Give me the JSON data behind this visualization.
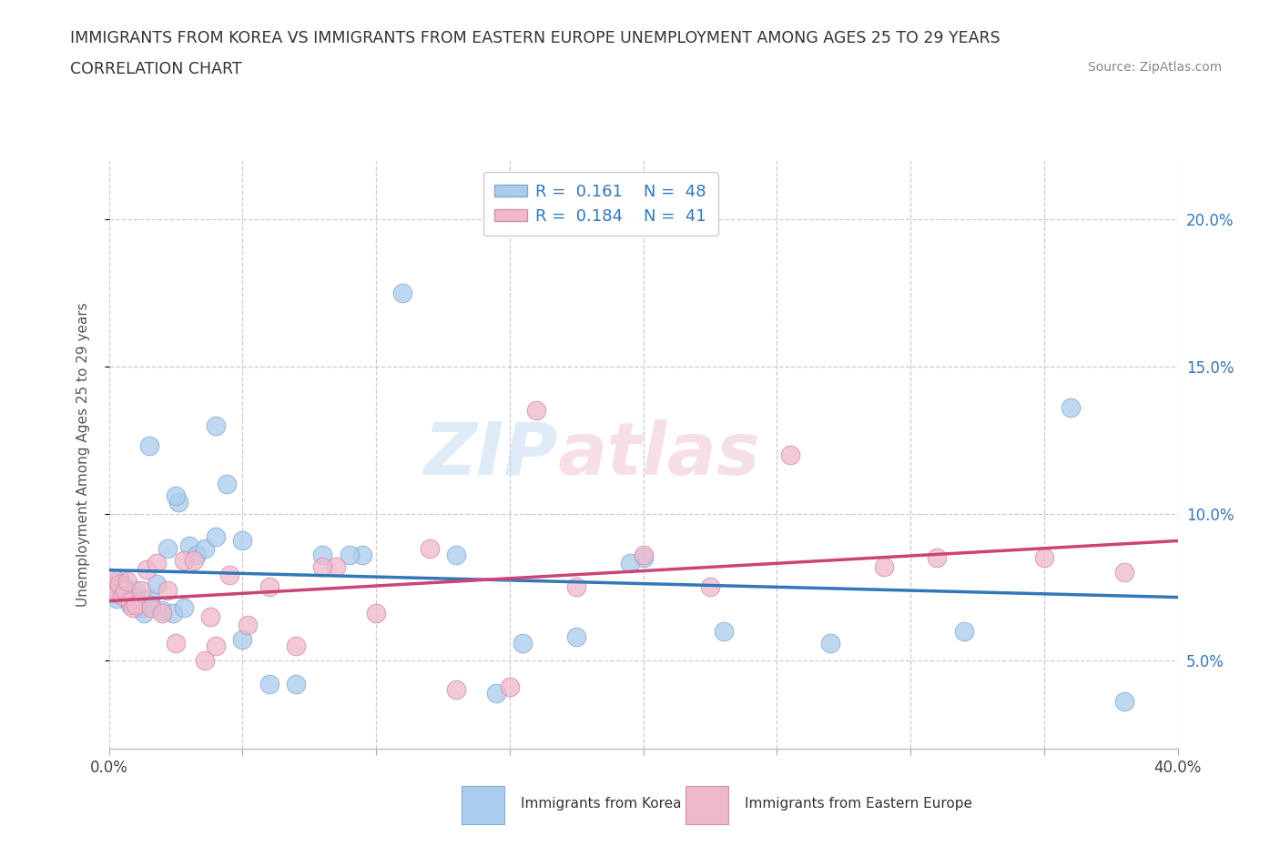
{
  "title_line1": "IMMIGRANTS FROM KOREA VS IMMIGRANTS FROM EASTERN EUROPE UNEMPLOYMENT AMONG AGES 25 TO 29 YEARS",
  "title_line2": "CORRELATION CHART",
  "source_text": "Source: ZipAtlas.com",
  "ylabel": "Unemployment Among Ages 25 to 29 years",
  "xlim": [
    0.0,
    0.4
  ],
  "ylim": [
    0.02,
    0.22
  ],
  "yticks": [
    0.05,
    0.1,
    0.15,
    0.2
  ],
  "ytick_labels": [
    "5.0%",
    "10.0%",
    "15.0%",
    "20.0%"
  ],
  "xticks": [
    0.0,
    0.05,
    0.1,
    0.15,
    0.2,
    0.25,
    0.3,
    0.35,
    0.4
  ],
  "korea_color": "#aaccee",
  "korea_edge_color": "#88aad0",
  "eastern_color": "#f0b8cc",
  "eastern_edge_color": "#d090a8",
  "korea_line_color": "#3377bb",
  "eastern_line_color": "#cc4477",
  "legend_text_color": "#3377bb",
  "watermark_text": "ZIPatlas",
  "legend_r_korea": "0.161",
  "legend_n_korea": "48",
  "legend_r_eastern": "0.184",
  "legend_n_eastern": "41",
  "korea_x": [
    0.001,
    0.002,
    0.003,
    0.004,
    0.005,
    0.006,
    0.007,
    0.008,
    0.009,
    0.01,
    0.011,
    0.012,
    0.013,
    0.015,
    0.016,
    0.018,
    0.02,
    0.022,
    0.024,
    0.026,
    0.028,
    0.03,
    0.033,
    0.036,
    0.04,
    0.044,
    0.05,
    0.06,
    0.07,
    0.08,
    0.095,
    0.11,
    0.13,
    0.155,
    0.175,
    0.2,
    0.23,
    0.27,
    0.32,
    0.36,
    0.38,
    0.195,
    0.145,
    0.09,
    0.05,
    0.04,
    0.025,
    0.015
  ],
  "korea_y": [
    0.073,
    0.075,
    0.071,
    0.078,
    0.076,
    0.074,
    0.073,
    0.069,
    0.072,
    0.074,
    0.07,
    0.068,
    0.066,
    0.071,
    0.069,
    0.076,
    0.067,
    0.088,
    0.066,
    0.104,
    0.068,
    0.089,
    0.086,
    0.088,
    0.13,
    0.11,
    0.057,
    0.042,
    0.042,
    0.086,
    0.086,
    0.175,
    0.086,
    0.056,
    0.058,
    0.085,
    0.06,
    0.056,
    0.06,
    0.136,
    0.036,
    0.083,
    0.039,
    0.086,
    0.091,
    0.092,
    0.106,
    0.123
  ],
  "eastern_x": [
    0.001,
    0.002,
    0.003,
    0.004,
    0.005,
    0.006,
    0.007,
    0.008,
    0.009,
    0.01,
    0.012,
    0.014,
    0.016,
    0.018,
    0.02,
    0.022,
    0.025,
    0.028,
    0.032,
    0.036,
    0.04,
    0.045,
    0.052,
    0.06,
    0.07,
    0.085,
    0.1,
    0.12,
    0.15,
    0.175,
    0.2,
    0.225,
    0.255,
    0.29,
    0.31,
    0.35,
    0.38,
    0.16,
    0.13,
    0.08,
    0.038
  ],
  "eastern_y": [
    0.075,
    0.078,
    0.073,
    0.076,
    0.072,
    0.074,
    0.077,
    0.07,
    0.068,
    0.069,
    0.074,
    0.081,
    0.068,
    0.083,
    0.066,
    0.074,
    0.056,
    0.084,
    0.084,
    0.05,
    0.055,
    0.079,
    0.062,
    0.075,
    0.055,
    0.082,
    0.066,
    0.088,
    0.041,
    0.075,
    0.086,
    0.075,
    0.12,
    0.082,
    0.085,
    0.085,
    0.08,
    0.135,
    0.04,
    0.082,
    0.065
  ]
}
